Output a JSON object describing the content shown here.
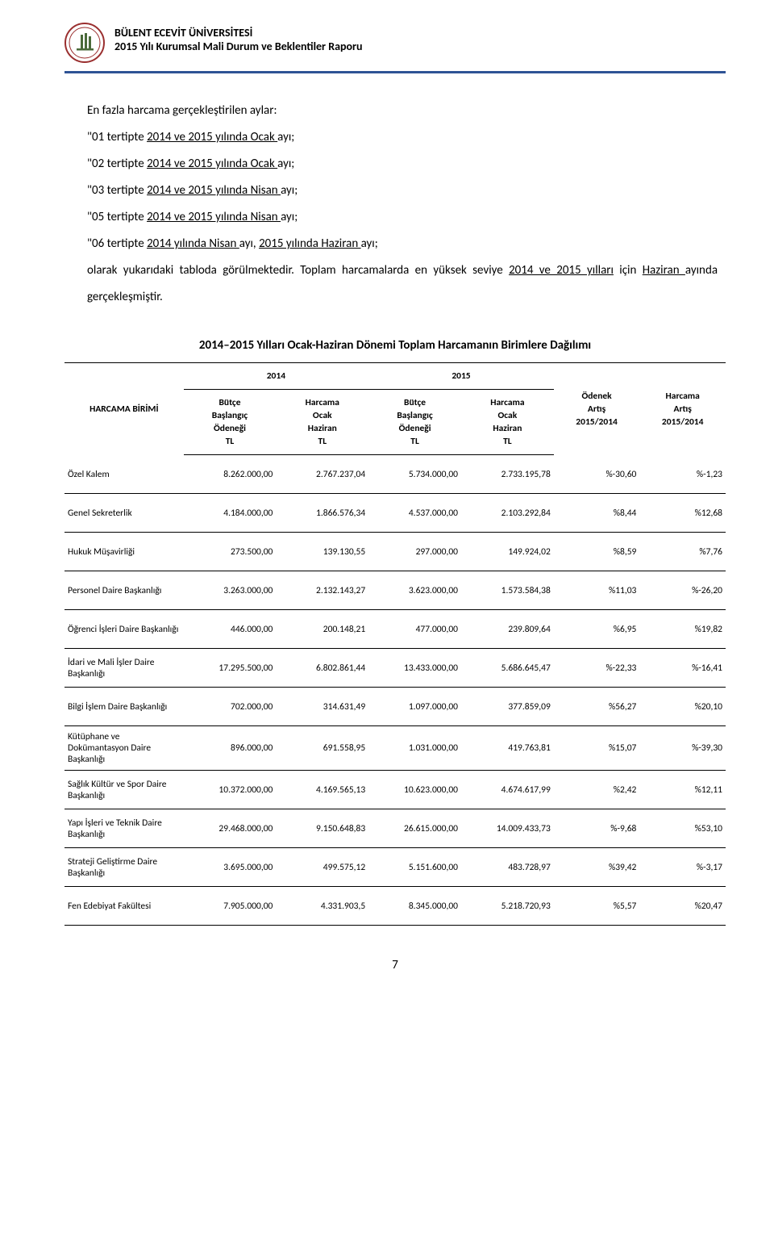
{
  "header": {
    "uni": "BÜLENT ECEVİT ÜNİVERSİTESİ",
    "report": "2015 Yılı Kurumsal Mali Durum ve Beklentiler Raporu"
  },
  "intro": {
    "lead": "En fazla harcama gerçekleştirilen aylar:",
    "l1_a": "\"01 tertipte ",
    "l1_u": "2014 ve 2015 yılında Ocak ",
    "l1_b": "ayı;",
    "l2_a": "\"02 tertipte ",
    "l2_u": "2014 ve 2015 yılında Ocak ",
    "l2_b": "ayı;",
    "l3_a": "\"03 tertipte ",
    "l3_u": "2014 ve 2015 yılında Nisan ",
    "l3_b": "ayı;",
    "l4_a": "\"05 tertipte ",
    "l4_u": "2014 ve 2015 yılında Nisan ",
    "l4_b": "ayı;",
    "l5_a": "\"06 tertipte ",
    "l5_u": "2014 yılında Nisan ",
    "l5_b": "ayı, ",
    "l5_u2": "2015 yılında Haziran ",
    "l5_c": "ayı;",
    "tail_a": "olarak  yukarıdaki tabloda görülmektedir. Toplam harcamalarda en yüksek seviye ",
    "tail_u1": "2014 ve 2015 yılları",
    "tail_b": " için ",
    "tail_u2": "Haziran ",
    "tail_c": "ayında gerçekleşmiştir."
  },
  "table": {
    "title": "2014–2015 Yılları Ocak-Haziran Dönemi Toplam Harcamanın Birimlere Dağılımı",
    "yr1": "2014",
    "yr2": "2015",
    "col0": "HARCAMA BİRİMİ",
    "col1": "Bütçe\nBaşlangıç\nÖdeneği\nTL",
    "col2": "Harcama\nOcak\nHaziran\nTL",
    "col3": "Bütçe\nBaşlangıç\nÖdeneği\nTL",
    "col4": "Harcama\nOcak\nHaziran\nTL",
    "col5": "Ödenek\nArtış\n2015/2014",
    "col6": "Harcama\nArtış\n2015/2014",
    "rows": [
      {
        "n": "Özel Kalem",
        "b14": "8.262.000,00",
        "h14": "2.767.237,04",
        "b15": "5.734.000,00",
        "h15": "2.733.195,78",
        "oa": "%-30,60",
        "ha": "%-1,23"
      },
      {
        "n": "Genel Sekreterlik",
        "b14": "4.184.000,00",
        "h14": "1.866.576,34",
        "b15": "4.537.000,00",
        "h15": "2.103.292,84",
        "oa": "%8,44",
        "ha": "%12,68"
      },
      {
        "n": "Hukuk Müşavirliği",
        "b14": "273.500,00",
        "h14": "139.130,55",
        "b15": "297.000,00",
        "h15": "149.924,02",
        "oa": "%8,59",
        "ha": "%7,76"
      },
      {
        "n": "Personel Daire Başkanlığı",
        "b14": "3.263.000,00",
        "h14": "2.132.143,27",
        "b15": "3.623.000,00",
        "h15": "1.573.584,38",
        "oa": "%11,03",
        "ha": "%-26,20"
      },
      {
        "n": "Öğrenci İşleri Daire Başkanlığı",
        "b14": "446.000,00",
        "h14": "200.148,21",
        "b15": "477.000,00",
        "h15": "239.809,64",
        "oa": "%6,95",
        "ha": "%19,82"
      },
      {
        "n": "İdari ve Mali İşler Daire Başkanlığı",
        "b14": "17.295.500,00",
        "h14": "6.802.861,44",
        "b15": "13.433.000,00",
        "h15": "5.686.645,47",
        "oa": "%-22,33",
        "ha": "%-16,41"
      },
      {
        "n": "Bilgi İşlem Daire Başkanlığı",
        "b14": "702.000,00",
        "h14": "314.631,49",
        "b15": "1.097.000,00",
        "h15": "377.859,09",
        "oa": "%56,27",
        "ha": "%20,10"
      },
      {
        "n": "Kütüphane ve Dokümantasyon Daire Başkanlığı",
        "b14": "896.000,00",
        "h14": "691.558,95",
        "b15": "1.031.000,00",
        "h15": "419.763,81",
        "oa": "%15,07",
        "ha": "%-39,30"
      },
      {
        "n": "Sağlık Kültür ve Spor Daire Başkanlığı",
        "b14": "10.372.000,00",
        "h14": "4.169.565,13",
        "b15": "10.623.000,00",
        "h15": "4.674.617,99",
        "oa": "%2,42",
        "ha": "%12,11"
      },
      {
        "n": "Yapı İşleri ve Teknik Daire Başkanlığı",
        "b14": "29.468.000,00",
        "h14": "9.150.648,83",
        "b15": "26.615.000,00",
        "h15": "14.009.433,73",
        "oa": "%-9,68",
        "ha": "%53,10"
      },
      {
        "n": "Strateji Geliştirme Daire Başkanlığı",
        "b14": "3.695.000,00",
        "h14": "499.575,12",
        "b15": "5.151.600,00",
        "h15": "483.728,97",
        "oa": "%39,42",
        "ha": "%-3,17"
      },
      {
        "n": "Fen Edebiyat Fakültesi",
        "b14": "7.905.000,00",
        "h14": "4.331.903,5",
        "b15": "8.345.000,00",
        "h15": "5.218.720,93",
        "oa": "%5,57",
        "ha": "%20,47"
      }
    ]
  },
  "footer": {
    "page": "7"
  },
  "style": {
    "accent": "#2e5395",
    "logo_ring": "#9a2f2f",
    "logo_inner": "#ffffff",
    "logo_tower": "#4a6a3a",
    "font_body": 15,
    "font_table": 11.5,
    "line_height": 2.2
  }
}
